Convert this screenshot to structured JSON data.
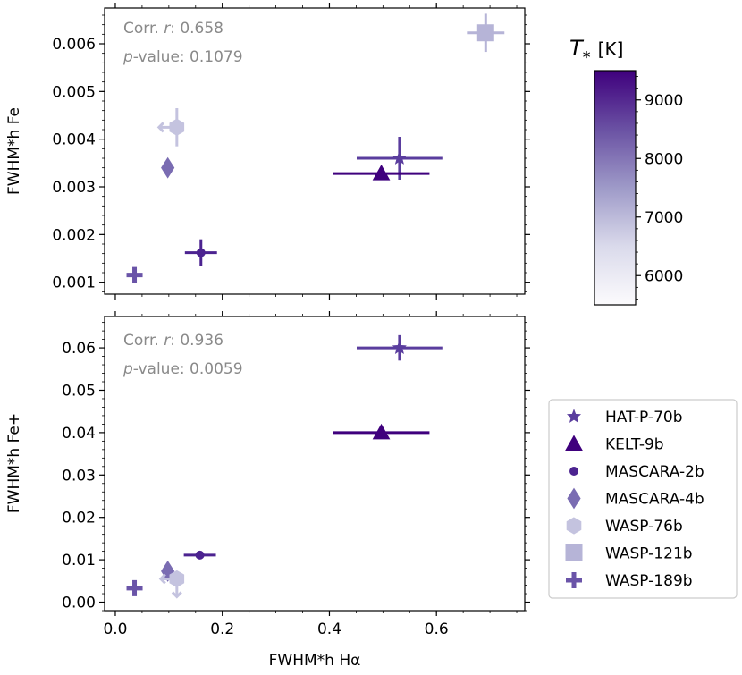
{
  "chart_data": {
    "type": "scatter",
    "xlabel": "FWHM*h Hα",
    "xlim": [
      -0.02,
      0.765
    ],
    "x_ticks": [
      0.0,
      0.2,
      0.4,
      0.6
    ],
    "x_tick_labels": [
      "0.0",
      "0.2",
      "0.4",
      "0.6"
    ],
    "colorbar": {
      "label_symbol": "T",
      "label_subscript": "*",
      "label_unit": "[K]",
      "range": [
        5500,
        9500
      ],
      "ticks": [
        6000,
        7000,
        8000,
        9000
      ],
      "tick_labels": [
        "6000",
        "7000",
        "8000",
        "9000"
      ],
      "colormap": [
        "#fcfbfd",
        "#dadaeb",
        "#9e9ac8",
        "#6a51a3",
        "#3f007d"
      ]
    },
    "legend": {
      "position": "right",
      "entries": [
        {
          "label": "HAT-P-70b",
          "marker": "star",
          "color": "#5a3d9e"
        },
        {
          "label": "KELT-9b",
          "marker": "triangle",
          "color": "#3f007d"
        },
        {
          "label": "MASCARA-2b",
          "marker": "dot",
          "color": "#4c2390"
        },
        {
          "label": "MASCARA-4b",
          "marker": "diamond",
          "color": "#7a6cb2"
        },
        {
          "label": "WASP-76b",
          "marker": "hexagon",
          "color": "#c4c3df"
        },
        {
          "label": "WASP-121b",
          "marker": "square",
          "color": "#b6b4d7"
        },
        {
          "label": "WASP-189b",
          "marker": "plus",
          "color": "#6a54a8"
        }
      ]
    },
    "panels": [
      {
        "ylabel": "FWHM*h Fe",
        "ylim": [
          0.00075,
          0.00675
        ],
        "y_ticks": [
          0.001,
          0.002,
          0.003,
          0.004,
          0.005,
          0.006
        ],
        "y_tick_labels": [
          "0.001",
          "0.002",
          "0.003",
          "0.004",
          "0.005",
          "0.006"
        ],
        "corr_label": "Corr. ",
        "corr_var": "r",
        "corr_value": ": 0.658",
        "pval_var": "p",
        "pval_value": "-value: 0.1079",
        "points": [
          {
            "planet": "HAT-P-70b",
            "marker": "star",
            "color": "#5a3d9e",
            "x": 0.531,
            "y": 0.0036,
            "xerr": 0.08,
            "yerr": 0.00045
          },
          {
            "planet": "KELT-9b",
            "marker": "triangle",
            "color": "#3f007d",
            "x": 0.497,
            "y": 0.00328,
            "xerr": 0.09,
            "yerr": 0.00012
          },
          {
            "planet": "MASCARA-2b",
            "marker": "dot",
            "color": "#4c2390",
            "x": 0.16,
            "y": 0.00162,
            "xerr": 0.03,
            "yerr": 0.00028
          },
          {
            "planet": "MASCARA-4b",
            "marker": "diamond",
            "color": "#7a6cb2",
            "x": 0.098,
            "y": 0.0034,
            "xerr": 0.0,
            "yerr": 0.0
          },
          {
            "planet": "WASP-76b",
            "marker": "hexagon",
            "color": "#c4c3df",
            "x": 0.115,
            "y": 0.00425,
            "xerr": 0.0,
            "yerr": 0.0004,
            "limit": "x-upper"
          },
          {
            "planet": "WASP-121b",
            "marker": "square",
            "color": "#b6b4d7",
            "x": 0.692,
            "y": 0.00623,
            "xerr": 0.035,
            "yerr": 0.0004
          },
          {
            "planet": "WASP-189b",
            "marker": "plus",
            "color": "#6a54a8",
            "x": 0.036,
            "y": 0.00115,
            "xerr": 0.0,
            "yerr": 0.0
          }
        ]
      },
      {
        "ylabel": "FWHM*h Fe+",
        "ylim": [
          -0.002,
          0.0674
        ],
        "y_ticks": [
          0.0,
          0.01,
          0.02,
          0.03,
          0.04,
          0.05,
          0.06
        ],
        "y_tick_labels": [
          "0.00",
          "0.01",
          "0.02",
          "0.03",
          "0.04",
          "0.05",
          "0.06"
        ],
        "corr_label": "Corr. ",
        "corr_var": "r",
        "corr_value": ": 0.936",
        "pval_var": "p",
        "pval_value": "-value: 0.0059",
        "points": [
          {
            "planet": "HAT-P-70b",
            "marker": "star",
            "color": "#5a3d9e",
            "x": 0.531,
            "y": 0.06,
            "xerr": 0.08,
            "yerr": 0.003
          },
          {
            "planet": "KELT-9b",
            "marker": "triangle",
            "color": "#3f007d",
            "x": 0.497,
            "y": 0.04,
            "xerr": 0.09,
            "yerr": 0.0
          },
          {
            "planet": "MASCARA-2b",
            "marker": "dot",
            "color": "#4c2390",
            "x": 0.158,
            "y": 0.0111,
            "xerr": 0.03,
            "yerr": 0.0007
          },
          {
            "planet": "MASCARA-4b",
            "marker": "diamond",
            "color": "#7a6cb2",
            "x": 0.098,
            "y": 0.0073,
            "xerr": 0.0,
            "yerr": 0.0
          },
          {
            "planet": "WASP-76b",
            "marker": "hexagon",
            "color": "#c4c3df",
            "x": 0.115,
            "y": 0.0055,
            "xerr": 0.0,
            "yerr": 0.0,
            "limit": "both-upper"
          },
          {
            "planet": "WASP-189b",
            "marker": "plus",
            "color": "#6a54a8",
            "x": 0.036,
            "y": 0.0033,
            "xerr": 0.0,
            "yerr": 0.0
          }
        ]
      }
    ]
  }
}
